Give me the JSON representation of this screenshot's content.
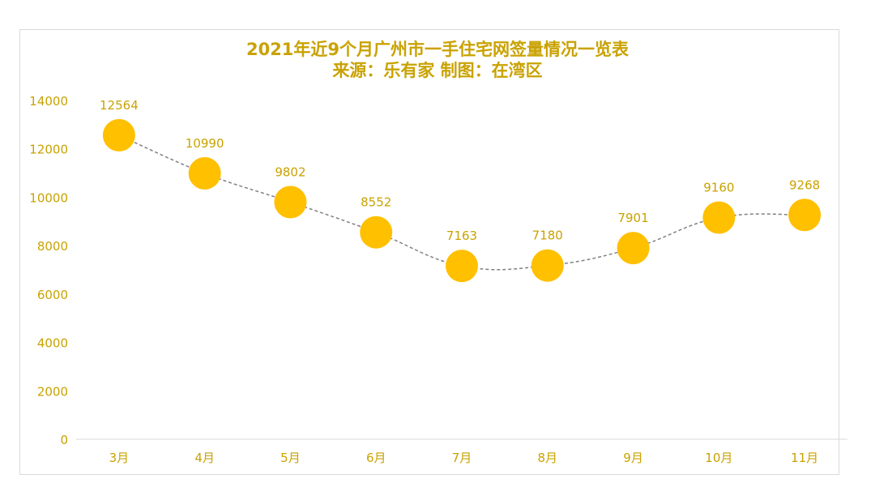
{
  "chart_data": {
    "type": "line",
    "title": "2021年近9个月广州市一手住宅网签量情况一览表",
    "subtitle": "来源：乐有家  制图：在湾区",
    "categories": [
      "3月",
      "4月",
      "5月",
      "6月",
      "7月",
      "8月",
      "9月",
      "10月",
      "11月"
    ],
    "values": [
      12564,
      10990,
      9802,
      8552,
      7163,
      7180,
      7901,
      9160,
      9268
    ],
    "data_labels": [
      "12564",
      "10990",
      "9802",
      "8552",
      "7163",
      "7180",
      "7901",
      "9160",
      "9268"
    ],
    "y_ticks": [
      "0",
      "2000",
      "4000",
      "6000",
      "8000",
      "10000",
      "12000",
      "14000"
    ],
    "ylim": [
      0,
      14000
    ],
    "xlabel": "",
    "ylabel": "",
    "grid": false,
    "legend": "none",
    "colors": {
      "marker": "#ffc000",
      "line": "#808080",
      "text": "#c9a200",
      "axis": "#d9d9d9"
    }
  }
}
